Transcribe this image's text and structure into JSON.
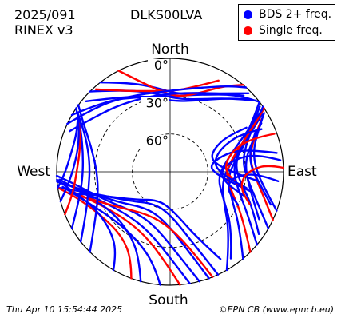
{
  "header": {
    "date": "2025/091",
    "rinex": "RINEX v3",
    "station": "DLKS00LVA"
  },
  "legend": {
    "multi_label": "BDS 2+ freq.",
    "single_label": "Single freq."
  },
  "colors": {
    "multi": "#0000ff",
    "single": "#ff0000"
  },
  "footer": {
    "left": "Thu Apr 10 15:54:44 2025",
    "right": "©EPN CB (www.epncb.eu)"
  },
  "chart_data": {
    "type": "polar-skyplot",
    "directions": {
      "north": "North",
      "south": "South",
      "east": "East",
      "west": "West"
    },
    "elevation_rings": [
      {
        "elevation": 0,
        "label": "0°"
      },
      {
        "elevation": 30,
        "label": "30°"
      },
      {
        "elevation": 60,
        "label": "60°"
      }
    ],
    "elevation_range": [
      0,
      90
    ],
    "azimuth_range": [
      0,
      360
    ],
    "tracks": [
      {
        "color": "multi",
        "points": [
          [
            322,
            0
          ],
          [
            335,
            12
          ],
          [
            350,
            22
          ],
          [
            5,
            28
          ],
          [
            20,
            24
          ],
          [
            35,
            14
          ],
          [
            45,
            2
          ]
        ]
      },
      {
        "color": "multi",
        "points": [
          [
            315,
            0
          ],
          [
            330,
            15
          ],
          [
            348,
            26
          ],
          [
            5,
            32
          ],
          [
            22,
            28
          ],
          [
            38,
            16
          ],
          [
            50,
            2
          ]
        ]
      },
      {
        "color": "multi",
        "points": [
          [
            310,
            3
          ],
          [
            325,
            18
          ],
          [
            345,
            28
          ],
          [
            2,
            34
          ],
          [
            20,
            30
          ],
          [
            36,
            18
          ],
          [
            48,
            4
          ]
        ]
      },
      {
        "color": "multi",
        "points": [
          [
            300,
            0
          ],
          [
            318,
            14
          ],
          [
            338,
            26
          ],
          [
            0,
            30
          ],
          [
            22,
            24
          ],
          [
            40,
            10
          ],
          [
            52,
            0
          ]
        ]
      },
      {
        "color": "single",
        "points": [
          [
            333,
            0
          ],
          [
            342,
            15
          ],
          [
            355,
            27
          ],
          [
            8,
            30
          ],
          [
            22,
            22
          ],
          [
            32,
            10
          ],
          [
            40,
            0
          ]
        ]
      },
      {
        "color": "single",
        "points": [
          [
            318,
            2
          ],
          [
            330,
            16
          ],
          [
            346,
            24
          ],
          [
            2,
            26
          ],
          [
            16,
            20
          ],
          [
            28,
            8
          ]
        ]
      },
      {
        "color": "multi",
        "points": [
          [
            295,
            0
          ],
          [
            312,
            12
          ],
          [
            332,
            22
          ],
          [
            355,
            26
          ],
          [
            18,
            20
          ],
          [
            34,
            8
          ],
          [
            42,
            0
          ]
        ]
      },
      {
        "color": "multi",
        "points": [
          [
            292,
            4
          ],
          [
            306,
            16
          ],
          [
            325,
            24
          ],
          [
            350,
            28
          ],
          [
            12,
            26
          ],
          [
            30,
            18
          ],
          [
            44,
            6
          ]
        ]
      },
      {
        "color": "multi",
        "points": [
          [
            130,
            0
          ],
          [
            120,
            18
          ],
          [
            105,
            34
          ],
          [
            88,
            40
          ],
          [
            72,
            32
          ],
          [
            60,
            16
          ],
          [
            52,
            0
          ]
        ]
      },
      {
        "color": "multi",
        "points": [
          [
            140,
            0
          ],
          [
            128,
            20
          ],
          [
            112,
            38
          ],
          [
            95,
            44
          ],
          [
            78,
            36
          ],
          [
            64,
            18
          ],
          [
            55,
            0
          ]
        ]
      },
      {
        "color": "multi",
        "points": [
          [
            150,
            0
          ],
          [
            136,
            22
          ],
          [
            118,
            42
          ],
          [
            98,
            48
          ],
          [
            80,
            40
          ],
          [
            66,
            22
          ],
          [
            58,
            4
          ]
        ]
      },
      {
        "color": "multi",
        "points": [
          [
            120,
            0
          ],
          [
            110,
            16
          ],
          [
            96,
            28
          ],
          [
            82,
            32
          ],
          [
            68,
            24
          ],
          [
            58,
            8
          ]
        ]
      },
      {
        "color": "multi",
        "points": [
          [
            125,
            4
          ],
          [
            112,
            20
          ],
          [
            98,
            34
          ],
          [
            84,
            38
          ],
          [
            70,
            30
          ],
          [
            60,
            14
          ],
          [
            54,
            2
          ]
        ]
      },
      {
        "color": "single",
        "points": [
          [
            135,
            0
          ],
          [
            122,
            22
          ],
          [
            106,
            40
          ],
          [
            90,
            46
          ],
          [
            74,
            36
          ],
          [
            62,
            16
          ],
          [
            56,
            0
          ]
        ]
      },
      {
        "color": "single",
        "points": [
          [
            115,
            0
          ],
          [
            106,
            12
          ],
          [
            94,
            22
          ],
          [
            80,
            26
          ],
          [
            68,
            18
          ],
          [
            60,
            6
          ]
        ]
      },
      {
        "color": "multi",
        "points": [
          [
            110,
            0
          ],
          [
            100,
            14
          ],
          [
            88,
            22
          ],
          [
            76,
            22
          ],
          [
            66,
            14
          ],
          [
            58,
            2
          ]
        ]
      },
      {
        "color": "multi",
        "points": [
          [
            145,
            6
          ],
          [
            132,
            24
          ],
          [
            115,
            44
          ],
          [
            96,
            52
          ],
          [
            76,
            42
          ],
          [
            62,
            20
          ],
          [
            56,
            2
          ]
        ]
      },
      {
        "color": "multi",
        "points": [
          [
            108,
            6
          ],
          [
            98,
            18
          ],
          [
            86,
            26
          ],
          [
            74,
            24
          ],
          [
            64,
            14
          ]
        ]
      },
      {
        "color": "multi",
        "points": [
          [
            118,
            10
          ],
          [
            104,
            24
          ],
          [
            90,
            30
          ],
          [
            78,
            28
          ],
          [
            68,
            18
          ],
          [
            62,
            8
          ]
        ]
      },
      {
        "color": "multi",
        "points": [
          [
            165,
            0
          ],
          [
            175,
            25
          ],
          [
            195,
            45
          ],
          [
            220,
            48
          ],
          [
            245,
            35
          ],
          [
            262,
            15
          ],
          [
            268,
            0
          ]
        ]
      },
      {
        "color": "multi",
        "points": [
          [
            170,
            0
          ],
          [
            180,
            22
          ],
          [
            200,
            40
          ],
          [
            225,
            42
          ],
          [
            248,
            30
          ],
          [
            262,
            10
          ]
        ]
      },
      {
        "color": "multi",
        "points": [
          [
            160,
            0
          ],
          [
            168,
            28
          ],
          [
            185,
            50
          ],
          [
            212,
            56
          ],
          [
            240,
            42
          ],
          [
            258,
            20
          ],
          [
            265,
            0
          ]
        ]
      },
      {
        "color": "single",
        "points": [
          [
            175,
            0
          ],
          [
            184,
            20
          ],
          [
            202,
            36
          ],
          [
            226,
            38
          ],
          [
            248,
            26
          ],
          [
            260,
            8
          ]
        ]
      },
      {
        "color": "multi",
        "points": [
          [
            155,
            0
          ],
          [
            162,
            30
          ],
          [
            178,
            55
          ],
          [
            205,
            62
          ],
          [
            235,
            50
          ],
          [
            255,
            25
          ],
          [
            262,
            0
          ]
        ]
      },
      {
        "color": "multi",
        "points": [
          [
            185,
            0
          ],
          [
            190,
            16
          ],
          [
            206,
            30
          ],
          [
            228,
            32
          ],
          [
            250,
            20
          ],
          [
            262,
            4
          ]
        ]
      },
      {
        "color": "single",
        "points": [
          [
            200,
            0
          ],
          [
            204,
            14
          ],
          [
            216,
            26
          ],
          [
            236,
            26
          ],
          [
            254,
            14
          ],
          [
            262,
            0
          ]
        ]
      },
      {
        "color": "multi",
        "points": [
          [
            195,
            0
          ],
          [
            200,
            18
          ],
          [
            214,
            32
          ],
          [
            236,
            34
          ],
          [
            256,
            20
          ],
          [
            266,
            2
          ]
        ]
      },
      {
        "color": "multi",
        "points": [
          [
            210,
            0
          ],
          [
            214,
            14
          ],
          [
            226,
            24
          ],
          [
            244,
            24
          ],
          [
            258,
            12
          ],
          [
            266,
            0
          ]
        ]
      },
      {
        "color": "multi",
        "points": [
          [
            150,
            10
          ],
          [
            158,
            34
          ],
          [
            174,
            58
          ],
          [
            202,
            66
          ],
          [
            232,
            54
          ],
          [
            252,
            30
          ],
          [
            258,
            8
          ]
        ]
      },
      {
        "color": "single",
        "points": [
          [
            158,
            0
          ],
          [
            164,
            24
          ],
          [
            180,
            46
          ],
          [
            208,
            52
          ],
          [
            236,
            40
          ],
          [
            254,
            18
          ]
        ]
      },
      {
        "color": "multi",
        "points": [
          [
            225,
            0
          ],
          [
            236,
            18
          ],
          [
            252,
            30
          ],
          [
            270,
            32
          ],
          [
            288,
            24
          ],
          [
            300,
            10
          ],
          [
            306,
            0
          ]
        ]
      },
      {
        "color": "multi",
        "points": [
          [
            232,
            0
          ],
          [
            242,
            14
          ],
          [
            258,
            24
          ],
          [
            276,
            26
          ],
          [
            292,
            18
          ],
          [
            302,
            4
          ]
        ]
      },
      {
        "color": "multi",
        "points": [
          [
            240,
            0
          ],
          [
            250,
            12
          ],
          [
            264,
            20
          ],
          [
            280,
            20
          ],
          [
            295,
            12
          ],
          [
            304,
            0
          ]
        ]
      },
      {
        "color": "single",
        "points": [
          [
            248,
            0
          ],
          [
            256,
            10
          ],
          [
            270,
            16
          ],
          [
            286,
            16
          ],
          [
            298,
            8
          ]
        ]
      },
      {
        "color": "multi",
        "points": [
          [
            255,
            0
          ],
          [
            262,
            8
          ],
          [
            274,
            14
          ],
          [
            288,
            14
          ],
          [
            300,
            6
          ]
        ]
      },
      {
        "color": "multi",
        "points": [
          [
            262,
            0
          ],
          [
            268,
            6
          ],
          [
            280,
            10
          ],
          [
            292,
            10
          ],
          [
            302,
            4
          ]
        ]
      },
      {
        "color": "multi",
        "points": [
          [
            80,
            4
          ],
          [
            76,
            20
          ],
          [
            72,
            36
          ],
          [
            74,
            50
          ],
          [
            82,
            58
          ],
          [
            92,
            54
          ],
          [
            100,
            40
          ],
          [
            104,
            22
          ]
        ]
      },
      {
        "color": "multi",
        "points": [
          [
            84,
            2
          ],
          [
            80,
            16
          ],
          [
            78,
            30
          ],
          [
            82,
            44
          ],
          [
            92,
            50
          ],
          [
            102,
            44
          ],
          [
            108,
            28
          ]
        ]
      },
      {
        "color": "multi",
        "points": [
          [
            60,
            20
          ],
          [
            58,
            36
          ],
          [
            62,
            50
          ],
          [
            72,
            56
          ],
          [
            84,
            50
          ],
          [
            92,
            36
          ],
          [
            96,
            20
          ]
        ]
      },
      {
        "color": "single",
        "points": [
          [
            70,
            2
          ],
          [
            68,
            18
          ],
          [
            70,
            34
          ],
          [
            78,
            44
          ],
          [
            90,
            46
          ],
          [
            100,
            36
          ]
        ]
      },
      {
        "color": "multi",
        "points": [
          [
            95,
            4
          ],
          [
            92,
            18
          ],
          [
            92,
            32
          ],
          [
            98,
            42
          ],
          [
            108,
            42
          ],
          [
            116,
            30
          ]
        ]
      },
      {
        "color": "multi",
        "points": [
          [
            65,
            10
          ],
          [
            62,
            26
          ],
          [
            64,
            42
          ],
          [
            72,
            52
          ],
          [
            84,
            54
          ],
          [
            96,
            44
          ],
          [
            102,
            28
          ]
        ]
      },
      {
        "color": "single",
        "points": [
          [
            88,
            0
          ],
          [
            86,
            12
          ],
          [
            88,
            24
          ],
          [
            94,
            32
          ],
          [
            104,
            32
          ],
          [
            112,
            22
          ]
        ]
      }
    ]
  }
}
